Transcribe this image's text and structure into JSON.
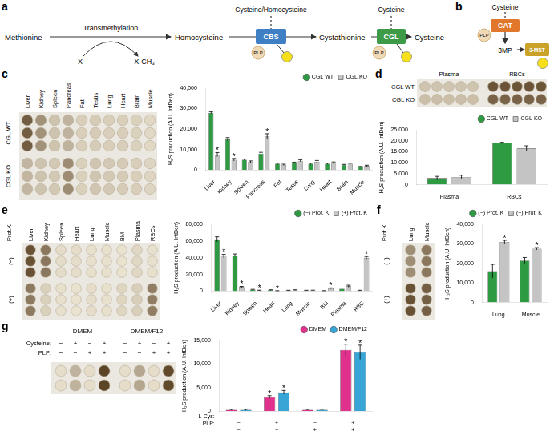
{
  "diagram_a": {
    "panel": "a",
    "nodes": [
      "Methionine",
      "Homocysteine",
      "Cystathionine",
      "Cysteine"
    ],
    "transmethylation": "Transmethylation",
    "methyl_donor": "X",
    "methyl_product": "X-CH₃",
    "enzymes": [
      "CBS",
      "CGL"
    ],
    "enzyme_substrates": [
      "Cysteine/Homocysteine",
      "Cysteine"
    ],
    "cofactor": "PLP"
  },
  "diagram_b": {
    "panel": "b",
    "substrate": "Cysteine",
    "enzymes": [
      "CAT",
      "3-MST"
    ],
    "intermediate": "3MP",
    "cofactor": "PLP"
  },
  "chart_data": [
    {
      "panel": "c",
      "type": "bar",
      "y_label": "H₂S production (A.U. IntDen)",
      "categories": [
        "Liver",
        "Kidney",
        "Spleen",
        "Pancreas",
        "Fat",
        "Testis",
        "Lung",
        "Heart",
        "Brain",
        "Muscle"
      ],
      "series": [
        {
          "name": "CGL WT",
          "color": "#2e9b43",
          "marker": "circle",
          "values": [
            28000,
            15000,
            5000,
            8000,
            3000,
            3500,
            3000,
            3000,
            2500,
            1500
          ],
          "errors": [
            500,
            800,
            300,
            600,
            300,
            300,
            300,
            300,
            200,
            200
          ]
        },
        {
          "name": "CGL KO",
          "color": "#c4c4c4",
          "marker": "rect",
          "values": [
            7500,
            5000,
            4000,
            16500,
            2500,
            4500,
            4000,
            3500,
            3000,
            2000
          ],
          "errors": [
            1000,
            600,
            400,
            1200,
            300,
            500,
            600,
            400,
            300,
            300
          ],
          "marks": [
            "*",
            "*",
            null,
            "*",
            null,
            null,
            null,
            null,
            null,
            null
          ]
        }
      ],
      "ylim": [
        0,
        40000
      ],
      "yticks": [
        0,
        {
          "value": 10000,
          "label": "10,000"
        },
        {
          "value": 20000,
          "label": "20,000"
        },
        {
          "value": 30000,
          "label": "30,000"
        },
        {
          "value": 40000,
          "label": "40,000"
        }
      ],
      "grid": false,
      "legend": "top",
      "blot": {
        "columns": [
          "Liver",
          "Kidney",
          "Spleen",
          "Pancreas",
          "Fat",
          "Testis",
          "Lung",
          "Heart",
          "Brain",
          "Muscle"
        ],
        "groups": [
          "CGL WT",
          "CGL KO"
        ],
        "replicates": 3
      }
    },
    {
      "panel": "d",
      "type": "bar",
      "y_label": "H₂S production (A.U. IntDen)",
      "categories": [
        "Plasma",
        "RBCs"
      ],
      "series": [
        {
          "name": "CGL WT",
          "color": "#2e9b43",
          "marker": "circle",
          "values": [
            3000,
            19000
          ],
          "errors": [
            800,
            300
          ]
        },
        {
          "name": "CGL KO",
          "color": "#c4c4c4",
          "marker": "rect",
          "values": [
            3500,
            16500
          ],
          "errors": [
            800,
            1200
          ]
        }
      ],
      "ylim": [
        0,
        25000
      ],
      "yticks": [
        0,
        {
          "value": 5000,
          "label": "5,000"
        },
        {
          "value": 10000,
          "label": "10,000"
        },
        {
          "value": 15000,
          "label": "15,000"
        },
        {
          "value": 20000,
          "label": "20,000"
        },
        {
          "value": 25000,
          "label": "25,000"
        }
      ],
      "grid": false,
      "legend": "top",
      "blot": {
        "columns": [
          "Plasma",
          "RBCs"
        ],
        "groups": [
          "CGL WT",
          "CGL KO"
        ],
        "replicates": 5
      }
    },
    {
      "panel": "e",
      "type": "bar",
      "y_label": "H₂S production (A.U. IntDen)",
      "categories": [
        "Liver",
        "Kidney",
        "Spleen",
        "Heart",
        "Lung",
        "Muscle",
        "BM",
        "Plasma",
        "RBC"
      ],
      "series": [
        {
          "name": "(−) Prot. K",
          "color": "#2e9b43",
          "marker": "circle",
          "values": [
            62000,
            43000,
            2000,
            1500,
            1000,
            1000,
            500,
            3000,
            1000
          ],
          "errors": [
            3000,
            1500,
            300,
            300,
            200,
            200,
            200,
            800,
            200
          ]
        },
        {
          "name": "(+) Prot. K",
          "color": "#c4c4c4",
          "marker": "rect",
          "values": [
            42000,
            5000,
            1000,
            500,
            1500,
            1000,
            3500,
            6000,
            40000
          ],
          "errors": [
            2000,
            800,
            300,
            200,
            300,
            300,
            500,
            1200,
            1500
          ],
          "marks": [
            "*",
            "*",
            "*",
            "*",
            null,
            null,
            "*",
            null,
            "*"
          ]
        }
      ],
      "ylim": [
        0,
        80000
      ],
      "yticks": [
        0,
        {
          "value": 20000,
          "label": "20,000"
        },
        {
          "value": 40000,
          "label": "40,000"
        },
        {
          "value": 60000,
          "label": "60,000"
        },
        {
          "value": 80000,
          "label": "80,000"
        }
      ],
      "grid": false,
      "legend": "top",
      "blot": {
        "label": "Prot.K",
        "columns": [
          "Liver",
          "Kidney",
          "Spleen",
          "Heart",
          "Lung",
          "Muscle",
          "BM",
          "Plasma",
          "RBCs"
        ],
        "groups": [
          "(−)",
          "(+)"
        ],
        "replicates": 3
      }
    },
    {
      "panel": "f",
      "type": "bar",
      "y_label": "H₂S production (A.U. IntDen)",
      "categories": [
        "Lung",
        "Muscle"
      ],
      "series": [
        {
          "name": "(−) Prot. K",
          "color": "#2e9b43",
          "marker": "circle",
          "values": [
            16000,
            21500
          ],
          "errors": [
            3500,
            1500
          ]
        },
        {
          "name": "(+) Prot. K",
          "color": "#c4c4c4",
          "marker": "rect",
          "values": [
            31000,
            27500
          ],
          "errors": [
            800,
            600
          ],
          "marks": [
            "*",
            "*"
          ]
        }
      ],
      "ylim": [
        0,
        40000
      ],
      "yticks": [
        0,
        {
          "value": 10000,
          "label": "10,000"
        },
        {
          "value": 20000,
          "label": "20,000"
        },
        {
          "value": 30000,
          "label": "30,000"
        },
        {
          "value": 40000,
          "label": "40,000"
        }
      ],
      "grid": false,
      "legend": "top",
      "blot": {
        "label": "Prot.K",
        "columns": [
          "Lung",
          "Muscle"
        ],
        "groups": [
          "(−)",
          "(+)"
        ],
        "replicates": 3
      }
    },
    {
      "panel": "g",
      "type": "bar",
      "y_label": "H₂S production (A.U. IntDen)",
      "categories": [
        [
          "−",
          "−"
        ],
        [
          "+",
          "−"
        ],
        [
          "−",
          "+"
        ],
        [
          "+",
          "+"
        ]
      ],
      "category_rows": [
        "L-Cys:",
        "PLP:"
      ],
      "series": [
        {
          "name": "DMEM",
          "color": "#e0318c",
          "marker": "circle",
          "values": [
            300,
            3000,
            300,
            13000
          ],
          "errors": [
            100,
            300,
            100,
            1200
          ],
          "marks": [
            null,
            "*",
            null,
            "*"
          ]
        },
        {
          "name": "DMEM/F12",
          "color": "#37a6d6",
          "marker": "circle",
          "values": [
            300,
            4000,
            300,
            12500
          ],
          "errors": [
            100,
            400,
            100,
            1500
          ],
          "marks": [
            null,
            "*",
            null,
            "*"
          ]
        }
      ],
      "ylim": [
        0,
        15000
      ],
      "yticks": [
        0,
        {
          "value": 5000,
          "label": "5,000"
        },
        {
          "value": 10000,
          "label": "10,000"
        },
        {
          "value": 15000,
          "label": "15,000"
        }
      ],
      "grid": false,
      "legend": "top",
      "blot": {
        "groups": [
          "DMEM",
          "DMEM/F12"
        ],
        "rows": [
          {
            "label": "Cysteine:",
            "values": [
              "−",
              "+",
              "−",
              "+"
            ]
          },
          {
            "label": "PLP:",
            "values": [
              "−",
              "−",
              "+",
              "+"
            ]
          }
        ],
        "replicates": 2
      }
    }
  ]
}
